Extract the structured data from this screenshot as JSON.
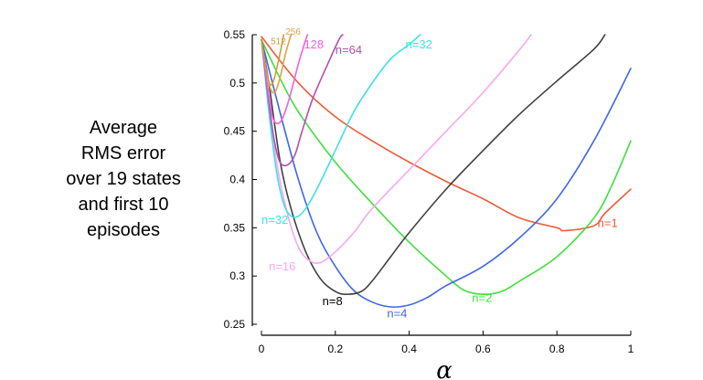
{
  "chart_data": {
    "type": "line",
    "ylabel_lines": [
      "Average",
      "RMS error",
      "over 19 states",
      "and first 10",
      "episodes"
    ],
    "xlabel": "α",
    "xlim": [
      0,
      1
    ],
    "ylim": [
      0.25,
      0.55
    ],
    "x_ticks": [
      "0",
      "0.2",
      "0.4",
      "0.6",
      "0.8",
      "1"
    ],
    "y_ticks": [
      "0.25",
      "0.3",
      "0.35",
      "0.4",
      "0.45",
      "0.5",
      "0.55"
    ],
    "series": [
      {
        "name": "n=1",
        "label": "n=1",
        "color": "#ef5a3c",
        "points": [
          [
            0,
            0.548
          ],
          [
            0.1,
            0.5
          ],
          [
            0.2,
            0.465
          ],
          [
            0.3,
            0.44
          ],
          [
            0.4,
            0.418
          ],
          [
            0.5,
            0.398
          ],
          [
            0.6,
            0.38
          ],
          [
            0.7,
            0.36
          ],
          [
            0.8,
            0.35
          ],
          [
            0.82,
            0.347
          ],
          [
            0.9,
            0.352
          ],
          [
            0.93,
            0.365
          ],
          [
            1.0,
            0.39
          ]
        ]
      },
      {
        "name": "n=2",
        "label": "n=2",
        "color": "#3ee03e",
        "points": [
          [
            0,
            0.545
          ],
          [
            0.05,
            0.505
          ],
          [
            0.1,
            0.47
          ],
          [
            0.2,
            0.418
          ],
          [
            0.3,
            0.375
          ],
          [
            0.4,
            0.335
          ],
          [
            0.5,
            0.3
          ],
          [
            0.55,
            0.285
          ],
          [
            0.6,
            0.281
          ],
          [
            0.65,
            0.284
          ],
          [
            0.7,
            0.295
          ],
          [
            0.8,
            0.32
          ],
          [
            0.9,
            0.36
          ],
          [
            0.95,
            0.395
          ],
          [
            1.0,
            0.44
          ]
        ]
      },
      {
        "name": "n=4",
        "label": "n=4",
        "color": "#4068e0",
        "points": [
          [
            0,
            0.545
          ],
          [
            0.05,
            0.47
          ],
          [
            0.1,
            0.4
          ],
          [
            0.15,
            0.345
          ],
          [
            0.2,
            0.31
          ],
          [
            0.25,
            0.285
          ],
          [
            0.3,
            0.273
          ],
          [
            0.35,
            0.268
          ],
          [
            0.4,
            0.27
          ],
          [
            0.45,
            0.278
          ],
          [
            0.5,
            0.29
          ],
          [
            0.6,
            0.31
          ],
          [
            0.7,
            0.34
          ],
          [
            0.8,
            0.38
          ],
          [
            0.9,
            0.44
          ],
          [
            1.0,
            0.515
          ]
        ]
      },
      {
        "name": "n=8",
        "label": "n=8",
        "color": "#404040",
        "points": [
          [
            0,
            0.545
          ],
          [
            0.02,
            0.5
          ],
          [
            0.05,
            0.42
          ],
          [
            0.08,
            0.37
          ],
          [
            0.12,
            0.325
          ],
          [
            0.16,
            0.297
          ],
          [
            0.2,
            0.284
          ],
          [
            0.23,
            0.281
          ],
          [
            0.27,
            0.284
          ],
          [
            0.3,
            0.295
          ],
          [
            0.35,
            0.32
          ],
          [
            0.4,
            0.345
          ],
          [
            0.5,
            0.39
          ],
          [
            0.6,
            0.43
          ],
          [
            0.7,
            0.468
          ],
          [
            0.8,
            0.502
          ],
          [
            0.9,
            0.535
          ],
          [
            0.93,
            0.55
          ]
        ]
      },
      {
        "name": "n=16",
        "label": "n=16",
        "color": "#f7a8ee",
        "points": [
          [
            0,
            0.545
          ],
          [
            0.02,
            0.48
          ],
          [
            0.04,
            0.42
          ],
          [
            0.07,
            0.365
          ],
          [
            0.1,
            0.33
          ],
          [
            0.13,
            0.316
          ],
          [
            0.16,
            0.314
          ],
          [
            0.2,
            0.325
          ],
          [
            0.25,
            0.345
          ],
          [
            0.3,
            0.37
          ],
          [
            0.4,
            0.41
          ],
          [
            0.5,
            0.45
          ],
          [
            0.6,
            0.49
          ],
          [
            0.7,
            0.535
          ],
          [
            0.73,
            0.55
          ]
        ]
      },
      {
        "name": "n=32",
        "label": "n=32",
        "color": "#40e0e8",
        "points": [
          [
            0,
            0.545
          ],
          [
            0.02,
            0.47
          ],
          [
            0.04,
            0.41
          ],
          [
            0.06,
            0.375
          ],
          [
            0.08,
            0.362
          ],
          [
            0.1,
            0.362
          ],
          [
            0.12,
            0.37
          ],
          [
            0.15,
            0.39
          ],
          [
            0.2,
            0.43
          ],
          [
            0.25,
            0.47
          ],
          [
            0.3,
            0.5
          ],
          [
            0.35,
            0.525
          ],
          [
            0.4,
            0.54
          ],
          [
            0.43,
            0.55
          ]
        ]
      },
      {
        "name": "n=64",
        "label": "n=64",
        "color": "#b050b0",
        "points": [
          [
            0,
            0.545
          ],
          [
            0.02,
            0.48
          ],
          [
            0.035,
            0.44
          ],
          [
            0.05,
            0.418
          ],
          [
            0.07,
            0.415
          ],
          [
            0.09,
            0.425
          ],
          [
            0.11,
            0.45
          ],
          [
            0.14,
            0.485
          ],
          [
            0.18,
            0.52
          ],
          [
            0.21,
            0.545
          ],
          [
            0.22,
            0.55
          ]
        ]
      },
      {
        "name": "128",
        "label": "128",
        "color": "#f060e0",
        "points": [
          [
            0,
            0.545
          ],
          [
            0.015,
            0.5
          ],
          [
            0.03,
            0.465
          ],
          [
            0.045,
            0.458
          ],
          [
            0.06,
            0.466
          ],
          [
            0.08,
            0.49
          ],
          [
            0.1,
            0.52
          ],
          [
            0.12,
            0.545
          ],
          [
            0.125,
            0.55
          ]
        ]
      },
      {
        "name": "256",
        "label": "256",
        "color": "#e8a040",
        "points": [
          [
            0,
            0.545
          ],
          [
            0.02,
            0.5
          ],
          [
            0.035,
            0.49
          ],
          [
            0.05,
            0.505
          ],
          [
            0.065,
            0.53
          ],
          [
            0.08,
            0.55
          ]
        ]
      },
      {
        "name": "512",
        "label": "512",
        "color": "#c8a040",
        "points": [
          [
            0,
            0.545
          ],
          [
            0.015,
            0.51
          ],
          [
            0.025,
            0.498
          ],
          [
            0.035,
            0.505
          ],
          [
            0.05,
            0.53
          ],
          [
            0.06,
            0.55
          ]
        ]
      }
    ],
    "label_positions": {
      "n=1": [
        0.91,
        0.351
      ],
      "n=2": [
        0.57,
        0.273
      ],
      "n=4": [
        0.34,
        0.257
      ],
      "n=8": [
        0.165,
        0.27
      ],
      "n=16": [
        0.02,
        0.306
      ],
      "n=32_low": [
        0.0,
        0.354
      ],
      "n=32_high": [
        0.39,
        0.536
      ],
      "n=64": [
        0.2,
        0.53
      ],
      "128": [
        0.115,
        0.536
      ],
      "256": [
        0.065,
        0.55
      ],
      "512": [
        0.025,
        0.54
      ]
    },
    "grid": false,
    "legend": "inline labels"
  }
}
